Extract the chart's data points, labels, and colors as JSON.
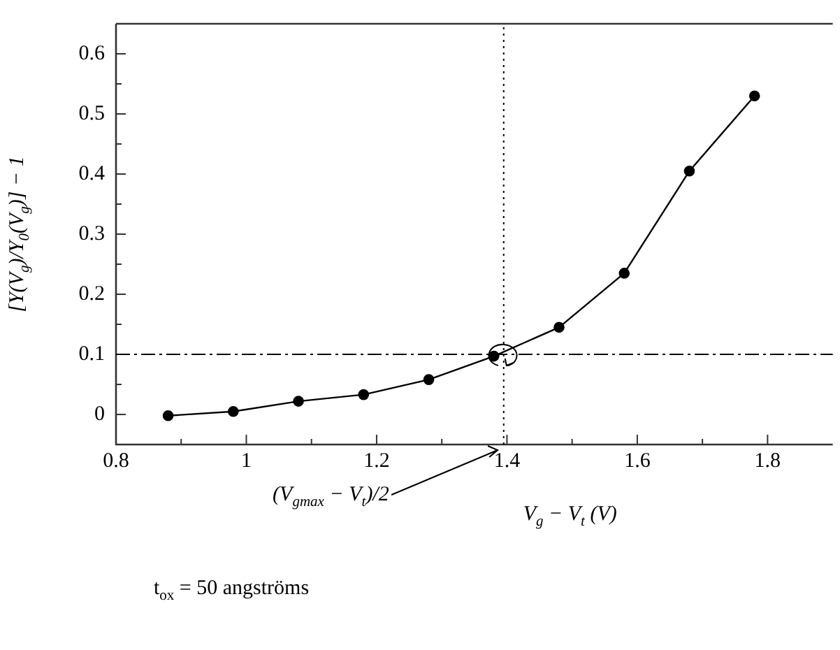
{
  "chart_data": {
    "type": "line",
    "xlabel": "V$_{g}$ − V$_{t}$ (V)",
    "ylabel": "[Y(V$_{g}$)/Y$_{0}$(V$_{g}$)] − 1",
    "x": [
      0.88,
      0.98,
      1.08,
      1.18,
      1.28,
      1.38,
      1.48,
      1.58,
      1.68,
      1.78
    ],
    "series": [
      {
        "color": "#000000",
        "values": [
          -0.002,
          0.005,
          0.022,
          0.033,
          0.058,
          0.097,
          0.145,
          0.235,
          0.405,
          0.53
        ]
      }
    ],
    "xlim": [
      0.8,
      1.9
    ],
    "xticks": [
      0.8,
      {
        "value": 0.9,
        "label": null
      },
      {
        "value": 1,
        "label": "1"
      },
      {
        "value": 1.1,
        "label": null
      },
      1.2,
      {
        "value": 1.3,
        "label": null
      },
      1.4,
      {
        "value": 1.5,
        "label": null
      },
      1.6,
      {
        "value": 1.7,
        "label": null
      },
      1.8
    ],
    "ylim": [
      -0.05,
      0.65
    ],
    "yticks": [
      {
        "value": 0,
        "label": "0"
      },
      {
        "value": 0.05,
        "label": null
      },
      0.1,
      {
        "value": 0.15,
        "label": null
      },
      0.2,
      {
        "value": 0.25,
        "label": null
      },
      0.3,
      {
        "value": 0.35,
        "label": null
      },
      0.4,
      {
        "value": 0.45,
        "label": null
      },
      0.5,
      {
        "value": 0.55,
        "label": null
      },
      0.6
    ],
    "ref_lines": [
      {
        "axis": "y",
        "value": 0.1,
        "line_style": "dashed"
      },
      {
        "axis": "x",
        "value": 1.395,
        "line_style": "dotted"
      }
    ],
    "annotations": [
      {
        "text": "(V$_{gmax}$ − V$_{t}$)/2",
        "x": 1.39,
        "y": -0.05
      },
      "t$_{ox}$ = 50 angströms"
    ],
    "marker": "circle",
    "line_style": "solid",
    "grid": false,
    "legend": false
  }
}
